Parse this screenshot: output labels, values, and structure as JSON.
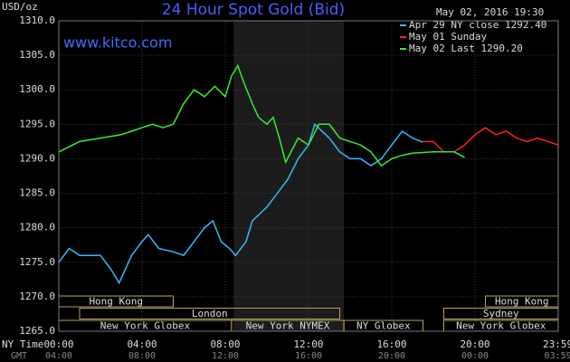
{
  "chart_data": {
    "type": "line",
    "title": "24 Hour Spot Gold (Bid)",
    "subtitle": "www.kitco.com",
    "timestamp": "May 02, 2016 19:30",
    "y_label": "USD/oz",
    "x_label": "NY Time",
    "x2_label": "GMT",
    "xlim": [
      0,
      24
    ],
    "ylim": [
      1265,
      1310
    ],
    "yticks": [
      {
        "value": 1265,
        "label": "1265.0"
      },
      {
        "value": 1270,
        "label": "1270.0"
      },
      {
        "value": 1275,
        "label": "1275.0"
      },
      {
        "value": 1280,
        "label": "1280.0"
      },
      {
        "value": 1285,
        "label": "1285.0"
      },
      {
        "value": 1290,
        "label": "1290.0"
      },
      {
        "value": 1295,
        "label": "1295.0"
      },
      {
        "value": 1300,
        "label": "1300.0"
      },
      {
        "value": 1305,
        "label": "1305.0"
      },
      {
        "value": 1310,
        "label": "1310.0"
      }
    ],
    "xticks": [
      {
        "value": 0,
        "label": "00:00"
      },
      {
        "value": 4,
        "label": "04:00"
      },
      {
        "value": 8,
        "label": "08:00"
      },
      {
        "value": 12,
        "label": "12:00"
      },
      {
        "value": 16,
        "label": "16:00"
      },
      {
        "value": 20,
        "label": "20:00"
      },
      {
        "value": 23.983,
        "label": "23:59"
      }
    ],
    "x2ticks": [
      {
        "value": 0,
        "label": "04:00"
      },
      {
        "value": 4,
        "label": "08:00"
      },
      {
        "value": 8,
        "label": "12:00"
      },
      {
        "value": 12,
        "label": "16:00"
      },
      {
        "value": 16,
        "label": "20:00"
      },
      {
        "value": 20,
        "label": "00:00"
      },
      {
        "value": 23.983,
        "label": "03:59"
      }
    ],
    "grid": true,
    "shaded_range": [
      8.4,
      13.7
    ],
    "sessions": [
      {
        "name": "Hong Kong",
        "row": 0,
        "start": 0,
        "end": 5.5
      },
      {
        "name": "Hong Kong",
        "row": 0,
        "start": 20.5,
        "end": 24
      },
      {
        "name": "London",
        "row": 1,
        "start": 1,
        "end": 13.5
      },
      {
        "name": "Sydney",
        "row": 1,
        "start": 18.5,
        "end": 24
      },
      {
        "name": "New York Globex",
        "row": 2,
        "start": 0,
        "end": 8.3
      },
      {
        "name": "New York NYMEX",
        "row": 2,
        "start": 8.3,
        "end": 13.7
      },
      {
        "name": "NY Globex",
        "row": 2,
        "start": 13.7,
        "end": 17.5
      },
      {
        "name": "New York Globex",
        "row": 2,
        "start": 18.5,
        "end": 24
      }
    ],
    "series": [
      {
        "name": "Apr 29 NY close 1292.40",
        "color": "#33bbff",
        "x": [
          0,
          0.5,
          1,
          2,
          2.5,
          2.9,
          3.5,
          4,
          4.3,
          4.8,
          5.5,
          6,
          6.5,
          7,
          7.4,
          7.8,
          8.2,
          8.5,
          9,
          9.3,
          10,
          10.5,
          11,
          11.5,
          12,
          12.3,
          13,
          13.5,
          14,
          14.5,
          15,
          15.5,
          16,
          16.5,
          17,
          17.5
        ],
        "values": [
          1275,
          1277,
          1276,
          1276,
          1274,
          1272,
          1276,
          1278,
          1279,
          1277,
          1276.5,
          1276,
          1278,
          1280,
          1281,
          1278,
          1277,
          1276,
          1278,
          1281,
          1283,
          1285,
          1287,
          1290,
          1292,
          1295,
          1293,
          1291,
          1290,
          1290,
          1289,
          1290,
          1292,
          1294,
          1293,
          1292.4
        ]
      },
      {
        "name": "May 01 Sunday",
        "color": "#ff2020",
        "x": [
          17.5,
          18,
          18.5,
          19,
          19.5,
          20,
          20.5,
          21,
          21.5,
          22,
          22.5,
          23,
          23.5,
          24
        ],
        "values": [
          1292.5,
          1292.5,
          1291,
          1291,
          1292,
          1293.5,
          1294.5,
          1293.5,
          1294,
          1293,
          1292.5,
          1293,
          1292.5,
          1292
        ]
      },
      {
        "name": "May 02 Last 1290.20",
        "color": "#33ee33",
        "x": [
          0,
          1,
          2,
          3,
          3.5,
          4,
          4.5,
          5,
          5.5,
          6,
          6.5,
          7,
          7.5,
          8,
          8.3,
          8.6,
          8.9,
          9.3,
          9.6,
          10,
          10.3,
          10.6,
          10.9,
          11.5,
          12,
          12.5,
          13,
          13.5,
          14,
          14.5,
          15,
          15.5,
          16,
          16.5,
          17,
          18,
          19,
          19.5
        ],
        "values": [
          1291,
          1292.5,
          1293,
          1293.5,
          1294,
          1294.5,
          1295,
          1294.5,
          1295,
          1298,
          1300,
          1299,
          1300.5,
          1299,
          1302,
          1303.5,
          1301,
          1298,
          1296,
          1295,
          1296,
          1293,
          1289.5,
          1293,
          1292,
          1295,
          1295,
          1293,
          1292.5,
          1292,
          1291,
          1289,
          1290,
          1290.5,
          1290.8,
          1291,
          1291,
          1290.2
        ]
      }
    ]
  }
}
